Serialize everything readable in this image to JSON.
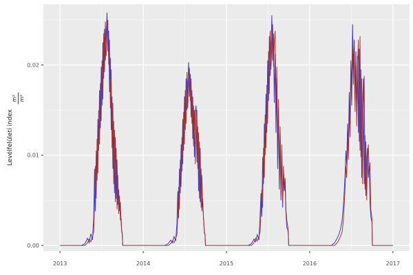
{
  "colors": {
    "figure_bg": "#FFFFFF",
    "panel_bg": "#EBEBEB",
    "grid_major": "#FFFFFF",
    "grid_minor": "#FFFFFF",
    "tick_mark": "#333333",
    "axis_text": "#4D4D4D",
    "series_blue": "#2B2BC8",
    "series_red": "#A32929"
  },
  "y_axis": {
    "title": "Levélfelületi index",
    "frac_num": "m²",
    "frac_den": "m²",
    "tick_labels": [
      "0.00",
      "0.01",
      "0.02"
    ]
  },
  "x_axis": {
    "tick_labels": [
      "2013",
      "2014",
      "2015",
      "2016",
      "2017"
    ]
  },
  "chart_data": {
    "type": "line",
    "title": "",
    "xlabel": "",
    "ylabel": "Levélfelületi index m²/m²",
    "grid": true,
    "legend": false,
    "xlim": [
      2012.8,
      2017.2
    ],
    "ylim": [
      -0.0006,
      0.0267
    ],
    "x_ticks": [
      2013,
      2014,
      2015,
      2016,
      2017
    ],
    "x_minor": [
      2013.5,
      2014.5,
      2015.5,
      2016.5
    ],
    "y_ticks": [
      0.0,
      0.01,
      0.02
    ],
    "y_minor": [
      0.005,
      0.015,
      0.025
    ],
    "x_start": 2013.0,
    "x_end": 2017.0,
    "years": [
      2013,
      2014,
      2015,
      2016
    ],
    "season_offsets": [
      0.26,
      0.3,
      0.33,
      0.35,
      0.37,
      0.39,
      0.405,
      0.415,
      0.425,
      0.435,
      0.445,
      0.455,
      0.465,
      0.475,
      0.485,
      0.495,
      0.505,
      0.515,
      0.525,
      0.535,
      0.545,
      0.555,
      0.565,
      0.575,
      0.585,
      0.595,
      0.605,
      0.615,
      0.625,
      0.635,
      0.645,
      0.655,
      0.665,
      0.675,
      0.685,
      0.695,
      0.705,
      0.715,
      0.725,
      0.735,
      0.742,
      0.748,
      0.753
    ],
    "series": [
      {
        "name": "lai-series-blue",
        "color": "#2B2BC8",
        "values_by_year": {
          "2013": [
            0,
            0.0002,
            0.0008,
            0.0003,
            0.0013,
            0.0006,
            0.0032,
            0.0085,
            0.0038,
            0.0105,
            0.0072,
            0.014,
            0.0105,
            0.0172,
            0.013,
            0.0198,
            0.0155,
            0.0225,
            0.0185,
            0.024,
            0.0205,
            0.0232,
            0.0258,
            0.0215,
            0.0238,
            0.017,
            0.0208,
            0.0128,
            0.0165,
            0.0085,
            0.0138,
            0.0058,
            0.012,
            0.0052,
            0.0095,
            0.0045,
            0.0062,
            0.0038,
            0.0048,
            0.0024,
            0.0015,
            0.0013,
            0
          ],
          "2014": [
            0,
            0.0002,
            0.0006,
            0.0003,
            0.001,
            0.0005,
            0.0025,
            0.006,
            0.003,
            0.0085,
            0.0058,
            0.0112,
            0.0082,
            0.014,
            0.0105,
            0.0165,
            0.0128,
            0.0185,
            0.015,
            0.0175,
            0.0203,
            0.0165,
            0.019,
            0.0142,
            0.0172,
            0.0118,
            0.0155,
            0.0098,
            0.0148,
            0.0155,
            0.0092,
            0.0132,
            0.006,
            0.0115,
            0.0048,
            0.0085,
            0.0038,
            0.0052,
            0.0028,
            0.0014,
            0.0012,
            0,
            0
          ],
          "2015": [
            0,
            0.0002,
            0.0007,
            0.0004,
            0.0012,
            0.0006,
            0.0035,
            0.0058,
            0.0032,
            0.0098,
            0.0068,
            0.0135,
            0.01,
            0.0168,
            0.0125,
            0.0205,
            0.016,
            0.0232,
            0.0188,
            0.0215,
            0.0255,
            0.0205,
            0.0235,
            0.0158,
            0.0212,
            0.0125,
            0.0185,
            0.0085,
            0.0152,
            0.0062,
            0.0125,
            0.005,
            0.0105,
            0.0042,
            0.0078,
            0.006,
            0.0068,
            0.0035,
            0.002,
            0.0018,
            0.0014,
            0,
            0
          ],
          "2016": [
            0,
            0.0003,
            0.0008,
            0.0012,
            0.0018,
            0.0028,
            0.0045,
            0.006,
            0.0078,
            0.0105,
            0.0088,
            0.0135,
            0.0108,
            0.017,
            0.0135,
            0.0205,
            0.0172,
            0.0245,
            0.0195,
            0.0228,
            0.0162,
            0.0215,
            0.0145,
            0.021,
            0.0125,
            0.0218,
            0.0105,
            0.0195,
            0.0075,
            0.0155,
            0.0185,
            0.0068,
            0.0122,
            0.0055,
            0.0095,
            0.0108,
            0.0075,
            0.0088,
            0.0045,
            0.0032,
            0.0028,
            0.0026,
            0
          ]
        }
      },
      {
        "name": "lai-series-red",
        "color": "#A32929",
        "values_by_year": {
          "2013": [
            0,
            0,
            0.0003,
            0.0007,
            0.0004,
            0.001,
            0.0015,
            0.0045,
            0.0088,
            0.0052,
            0.0118,
            0.008,
            0.015,
            0.0112,
            0.018,
            0.0138,
            0.0205,
            0.0162,
            0.0235,
            0.0192,
            0.0248,
            0.021,
            0.0242,
            0.025,
            0.02,
            0.0228,
            0.0152,
            0.0195,
            0.0108,
            0.0158,
            0.0068,
            0.0128,
            0.0048,
            0.0108,
            0.004,
            0.0078,
            0.0035,
            0.0055,
            0.0028,
            0.003,
            0.0016,
            0.0014,
            0
          ],
          "2014": [
            0,
            0,
            0.0002,
            0.0005,
            0.0003,
            0.0008,
            0.0012,
            0.0032,
            0.0065,
            0.004,
            0.0095,
            0.0065,
            0.012,
            0.009,
            0.0148,
            0.0112,
            0.0172,
            0.0135,
            0.0192,
            0.0152,
            0.018,
            0.0197,
            0.016,
            0.0185,
            0.0135,
            0.0165,
            0.011,
            0.015,
            0.009,
            0.0142,
            0.015,
            0.0085,
            0.0125,
            0.0052,
            0.0108,
            0.0042,
            0.0078,
            0.0045,
            0.003,
            0.0015,
            0.0013,
            0,
            0
          ],
          "2015": [
            0,
            0,
            0.0003,
            0.0008,
            0.0005,
            0.001,
            0.0015,
            0.004,
            0.0062,
            0.0042,
            0.0108,
            0.0075,
            0.0145,
            0.0108,
            0.0178,
            0.0135,
            0.0215,
            0.0168,
            0.0238,
            0.0195,
            0.0222,
            0.0245,
            0.0198,
            0.0225,
            0.0238,
            0.0155,
            0.0198,
            0.0105,
            0.0162,
            0.0072,
            0.0132,
            0.0055,
            0.0112,
            0.0048,
            0.0088,
            0.0065,
            0.0075,
            0.004,
            0.0028,
            0.0022,
            0.0018,
            0,
            0
          ],
          "2016": [
            0,
            0,
            0.0003,
            0.0006,
            0.001,
            0.0015,
            0.0028,
            0.0045,
            0.0062,
            0.0088,
            0.0075,
            0.0118,
            0.0095,
            0.015,
            0.012,
            0.0185,
            0.0155,
            0.0222,
            0.0178,
            0.0215,
            0.0148,
            0.0205,
            0.0132,
            0.0198,
            0.0228,
            0.0115,
            0.0232,
            0.0098,
            0.0185,
            0.0068,
            0.0145,
            0.0188,
            0.0062,
            0.0115,
            0.005,
            0.0098,
            0.0112,
            0.008,
            0.0092,
            0.004,
            0.0035,
            0.003,
            0
          ]
        }
      }
    ]
  }
}
